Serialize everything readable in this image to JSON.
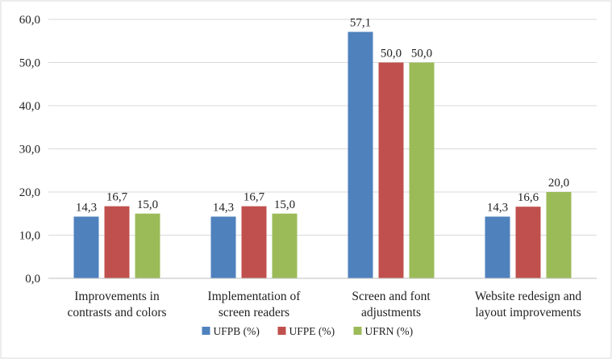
{
  "chart_data": {
    "type": "bar",
    "categories": [
      [
        "Improvements in",
        "contrasts and colors"
      ],
      [
        "Implementation of",
        "screen readers"
      ],
      [
        "Screen and font",
        "adjustments"
      ],
      [
        "Website redesign and",
        "layout improvements"
      ]
    ],
    "series": [
      {
        "name": "UFPB (%)",
        "color": "#4f81bd",
        "values": [
          14.3,
          14.3,
          57.1,
          14.3
        ],
        "labels": [
          "14,3",
          "14,3",
          "57,1",
          "14,3"
        ]
      },
      {
        "name": "UFPE (%)",
        "color": "#c0504d",
        "values": [
          16.7,
          16.7,
          50.0,
          16.6
        ],
        "labels": [
          "16,7",
          "16,7",
          "50,0",
          "16,6"
        ]
      },
      {
        "name": "UFRN (%)",
        "color": "#9bbb59",
        "values": [
          15.0,
          15.0,
          50.0,
          20.0
        ],
        "labels": [
          "15,0",
          "15,0",
          "50,0",
          "20,0"
        ]
      }
    ],
    "y_ticks": [
      "0,0",
      "10,0",
      "20,0",
      "30,0",
      "40,0",
      "50,0",
      "60,0"
    ],
    "ylim": [
      0,
      60
    ],
    "grid": true,
    "legend_position": "bottom",
    "gridline_color": "#d9d9d9",
    "border_color": "#d9d9d9"
  }
}
